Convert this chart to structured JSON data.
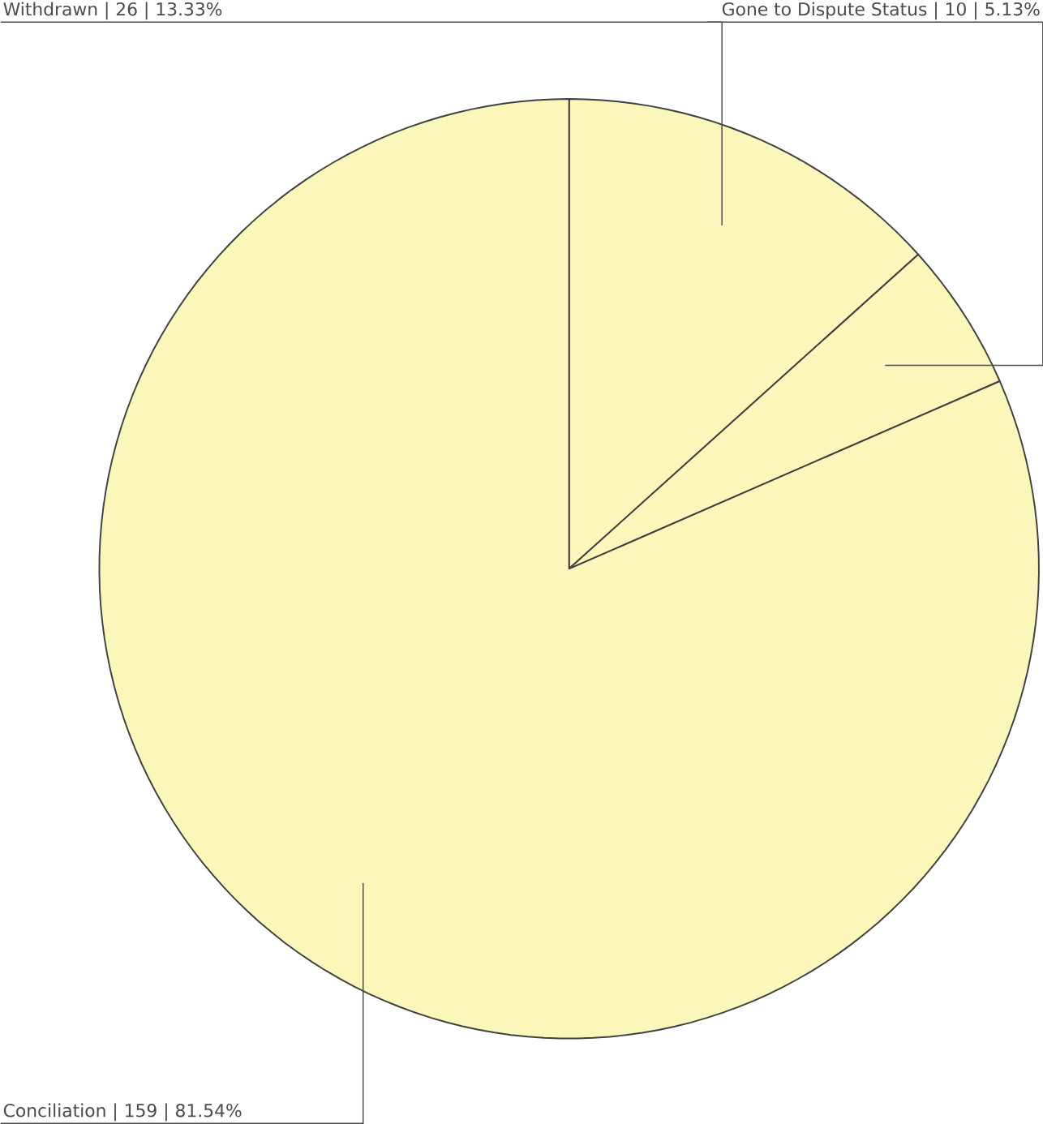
{
  "chart_data": {
    "type": "pie",
    "categories": [
      "Withdrawn",
      "Gone to Dispute Status",
      "Conciliation"
    ],
    "values": [
      26,
      10,
      159
    ],
    "value_labels": [
      "| 26 | 13.33%",
      "| 10 | 5.13%",
      "| 159 | 81.54%"
    ],
    "colors": [
      "#fbf6b9",
      "#fbf6b9",
      "#fbf6b9"
    ]
  }
}
